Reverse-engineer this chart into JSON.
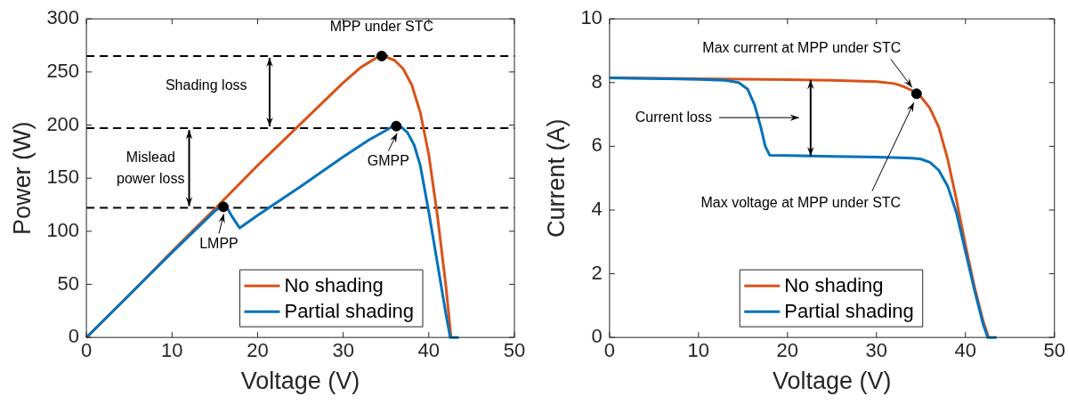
{
  "chart_data": [
    {
      "type": "line",
      "xlabel": "Voltage (V)",
      "ylabel": "Power (W)",
      "xlim": [
        0,
        50
      ],
      "xticks": [
        0,
        10,
        20,
        30,
        40,
        50
      ],
      "ylim": [
        0,
        300
      ],
      "yticks": [
        0,
        50,
        100,
        150,
        200,
        250,
        300
      ],
      "legend": "bottom right",
      "series": [
        {
          "name": "No shading",
          "color": "#d95319",
          "x": [
            0,
            5,
            10,
            15,
            20,
            25,
            30,
            32,
            33,
            34,
            34.5,
            35,
            36,
            37,
            38,
            39,
            40,
            41,
            42,
            42.6
          ],
          "values": [
            0,
            40,
            81,
            121,
            162,
            201,
            240,
            254,
            259,
            264,
            265,
            264,
            261,
            253,
            238,
            212,
            172,
            115,
            48,
            0
          ]
        },
        {
          "name": "Partial shading",
          "color": "#0072bd",
          "x": [
            0,
            5,
            10,
            15,
            15.5,
            16,
            16.5,
            17,
            17.9,
            20,
            25,
            30,
            33,
            35,
            35.6,
            36.2,
            36.8,
            37.5,
            38.3,
            39,
            40,
            41,
            42,
            42.5,
            43.5
          ],
          "values": [
            0,
            40,
            80,
            119,
            122,
            123,
            121,
            114,
            103,
            115,
            142,
            170,
            186,
            195,
            198,
            199,
            198,
            193,
            181,
            162,
            118,
            70,
            22,
            0,
            0
          ]
        },
        {
          "type": "scatter",
          "color": "#000000",
          "x": [
            34.5,
            36.2,
            16
          ],
          "values": [
            265,
            199,
            123
          ]
        }
      ],
      "ref_lines": [
        {
          "axis": "y",
          "value": 265,
          "line_style": "dashed",
          "color": "#000000"
        },
        {
          "axis": "y",
          "value": 197,
          "line_style": "dashed",
          "color": "#000000"
        },
        {
          "axis": "y",
          "value": 122,
          "line_style": "dashed",
          "color": "#000000"
        }
      ],
      "annotations": [
        {
          "text": "MPP under STC",
          "x": 34.5,
          "y": 265
        },
        "Shading loss",
        "Mislead power loss",
        {
          "text": "LMPP",
          "x": 16,
          "y": 123
        },
        {
          "text": "GMPP",
          "x": 36.2,
          "y": 199
        }
      ]
    },
    {
      "type": "line",
      "xlabel": "Voltage (V)",
      "ylabel": "Current (A)",
      "xlim": [
        0,
        50
      ],
      "xticks": [
        0,
        10,
        20,
        30,
        40,
        50
      ],
      "ylim": [
        0,
        10
      ],
      "yticks": [
        0,
        2,
        4,
        6,
        8,
        10
      ],
      "legend": "bottom right",
      "series": [
        {
          "name": "No shading",
          "color": "#d95319",
          "x": [
            0,
            10,
            20,
            25,
            30,
            32,
            33,
            34,
            35,
            36,
            37,
            38,
            39,
            40,
            41,
            42,
            42.6
          ],
          "values": [
            8.15,
            8.12,
            8.09,
            8.07,
            8.03,
            7.97,
            7.88,
            7.75,
            7.55,
            7.2,
            6.6,
            5.6,
            4.3,
            2.9,
            1.6,
            0.5,
            0
          ]
        },
        {
          "name": "Partial shading",
          "color": "#0072bd",
          "x": [
            0,
            10,
            13,
            14.5,
            15.5,
            16.3,
            17,
            17.5,
            18,
            20,
            25,
            30,
            34,
            35,
            36,
            37,
            38,
            39,
            40,
            41,
            42,
            42.5,
            43.5
          ],
          "values": [
            8.15,
            8.1,
            8.07,
            8.0,
            7.8,
            7.3,
            6.6,
            6.0,
            5.72,
            5.71,
            5.68,
            5.66,
            5.63,
            5.6,
            5.5,
            5.25,
            4.75,
            3.9,
            2.7,
            1.5,
            0.4,
            0,
            0
          ]
        },
        {
          "type": "scatter",
          "color": "#000000",
          "x": [
            34.5
          ],
          "values": [
            7.65
          ]
        }
      ],
      "annotations": [
        {
          "text": "Max current at MPP under STC",
          "x": 34.5,
          "y": 7.65
        },
        "Current loss",
        "Max voltage at MPP under STC"
      ]
    }
  ]
}
